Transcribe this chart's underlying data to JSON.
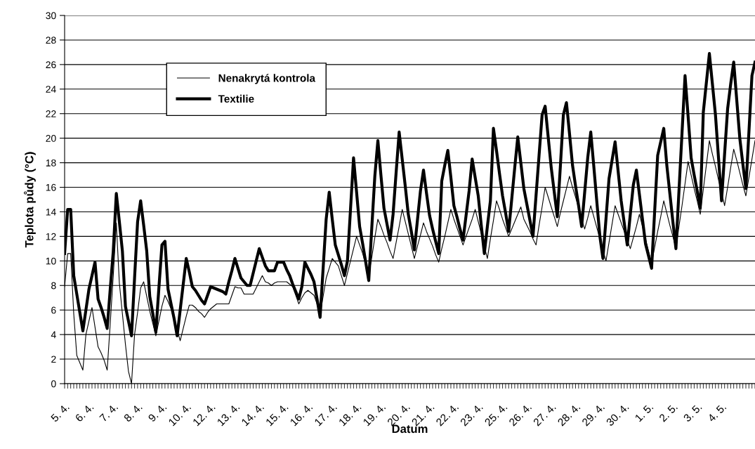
{
  "chart_data": {
    "type": "line",
    "xlabel": "Datum",
    "ylabel": "Teplota půdy (°C)",
    "ylim": [
      0,
      30
    ],
    "yticks": [
      0,
      2,
      4,
      6,
      8,
      10,
      12,
      14,
      16,
      18,
      20,
      22,
      24,
      26,
      28,
      30
    ],
    "grid": "y",
    "legend": "top left",
    "marker": "none",
    "line_style": "solid",
    "categories": [
      "5. 4.",
      null,
      null,
      null,
      null,
      null,
      null,
      null,
      "6. 4.",
      null,
      null,
      null,
      null,
      null,
      null,
      null,
      "7. 4.",
      null,
      null,
      null,
      null,
      null,
      null,
      null,
      "8. 4.",
      null,
      null,
      null,
      null,
      null,
      null,
      null,
      "9. 4.",
      null,
      null,
      null,
      null,
      null,
      null,
      null,
      "10. 4.",
      null,
      null,
      null,
      null,
      null,
      null,
      null,
      "12. 4.",
      null,
      null,
      null,
      null,
      null,
      null,
      null,
      "13. 4.",
      null,
      null,
      null,
      null,
      null,
      null,
      null,
      "14. 4.",
      null,
      null,
      null,
      null,
      null,
      null,
      null,
      "15. 4.",
      null,
      null,
      null,
      null,
      null,
      null,
      null,
      "16. 4.",
      null,
      null,
      null,
      null,
      null,
      null,
      null,
      "17. 4.",
      null,
      null,
      null,
      null,
      null,
      null,
      null,
      "18. 4.",
      null,
      null,
      null,
      null,
      null,
      null,
      null,
      "19. 4.",
      null,
      null,
      null,
      null,
      null,
      null,
      null,
      "20. 4.",
      null,
      null,
      null,
      null,
      null,
      null,
      null,
      "21. 4.",
      null,
      null,
      null,
      null,
      null,
      null,
      null,
      "22. 4.",
      null,
      null,
      null,
      null,
      null,
      null,
      null,
      "23. 4.",
      null,
      null,
      null,
      null,
      null,
      null,
      null,
      "25. 4.",
      null,
      null,
      null,
      null,
      null,
      null,
      null,
      "26. 4.",
      null,
      null,
      null,
      null,
      null,
      null,
      null,
      "27. 4.",
      null,
      null,
      null,
      null,
      null,
      null,
      null,
      "28. 4.",
      null,
      null,
      null,
      null,
      null,
      null,
      null,
      "29. 4.",
      null,
      null,
      null,
      null,
      null,
      null,
      null,
      "30. 4.",
      null,
      null,
      null,
      null,
      null,
      null,
      null,
      "1. 5.",
      null,
      null,
      null,
      null,
      null,
      null,
      null,
      "2. 5.",
      null,
      null,
      null,
      null,
      null,
      null,
      null,
      "3. 5.",
      null,
      null,
      null,
      null,
      null,
      null,
      null,
      "4. 5.",
      null,
      null,
      null,
      null,
      null,
      null,
      null,
      null,
      null,
      null,
      null
    ],
    "series": [
      {
        "name": "Nenakrytá kontrola",
        "color": "#000000",
        "values": [
          7.9,
          10.6,
          10.6,
          5.7,
          2.3,
          1.7,
          1.1,
          4,
          5.1,
          6.2,
          4.6,
          3,
          2.5,
          1.9,
          1.1,
          4.9,
          8.8,
          13.1,
          8.2,
          5.7,
          3.2,
          1,
          0,
          4,
          5.8,
          7.8,
          8.3,
          7.1,
          5.9,
          4.9,
          3.9,
          5.1,
          6.3,
          7.2,
          6.7,
          6.1,
          5.2,
          4.4,
          3.5,
          4.5,
          5.5,
          6.4,
          6.4,
          6.2,
          5.9,
          5.7,
          5.4,
          5.8,
          6.1,
          6.3,
          6.5,
          6.5,
          6.5,
          6.5,
          6.5,
          7.2,
          7.9,
          7.8,
          7.8,
          7.3,
          7.3,
          7.3,
          7.3,
          7.8,
          8.3,
          8.8,
          8.3,
          8.2,
          8,
          8.2,
          8.3,
          8.3,
          8.3,
          8.3,
          8.1,
          7.9,
          7.2,
          6.5,
          7,
          7.4,
          7.6,
          7.4,
          7.2,
          6.5,
          5.7,
          7.1,
          8.6,
          9.4,
          10.2,
          9.9,
          9.6,
          8.8,
          8,
          9,
          10,
          11,
          12,
          11.3,
          10.6,
          9.7,
          8.8,
          10.3,
          11.9,
          13.4,
          12.8,
          12.1,
          11.5,
          10.8,
          10.2,
          11.5,
          12.8,
          14.2,
          13.2,
          12.2,
          11.2,
          10.2,
          11.2,
          12.1,
          13.1,
          12.4,
          11.8,
          11.2,
          10.5,
          9.9,
          11,
          12,
          13.1,
          14.2,
          13.4,
          12.7,
          12,
          11.3,
          12,
          12.7,
          13.4,
          14.2,
          13.2,
          12.2,
          11.2,
          10.2,
          11.8,
          13.3,
          14.9,
          14.2,
          13.4,
          12.7,
          12,
          12.6,
          13.2,
          13.8,
          14.4,
          13.4,
          12.9,
          12.4,
          11.8,
          11.3,
          12.9,
          14.4,
          16,
          15.2,
          14.4,
          13.6,
          12.8,
          13.9,
          14.9,
          15.9,
          16.9,
          16,
          15.2,
          14.3,
          13.4,
          12.6,
          13.5,
          14.5,
          13.6,
          12.7,
          11.8,
          10.9,
          10,
          11.5,
          13,
          14.5,
          13.8,
          13.1,
          12.4,
          11.7,
          11,
          11.9,
          12.8,
          13.8,
          12.8,
          11.8,
          10.8,
          9.8,
          11.1,
          12.4,
          13.6,
          14.9,
          13.9,
          12.9,
          12,
          11,
          12.8,
          14.5,
          16.3,
          18.1,
          17,
          15.9,
          14.9,
          13.8,
          15.8,
          17.8,
          19.8,
          18.7,
          17.7,
          16.6,
          15.6,
          14.5,
          16,
          17.6,
          19.1,
          18.2,
          17.2,
          16.2,
          15.3,
          16.8,
          18.3,
          19.8
        ]
      },
      {
        "name": "Textilie",
        "color": "#000000",
        "values": [
          10.6,
          14.2,
          14.2,
          8.8,
          7.3,
          5.8,
          4.3,
          6,
          7.7,
          8.8,
          9.9,
          6.9,
          6.2,
          5.4,
          4.5,
          7.7,
          10.8,
          15.5,
          13.2,
          10.8,
          6.3,
          5.1,
          3.9,
          8.6,
          13.2,
          14.9,
          12.9,
          10.8,
          7.1,
          5.7,
          4.2,
          7.8,
          11.3,
          11.6,
          7.7,
          6.5,
          5.3,
          3.9,
          6,
          8.1,
          10.2,
          9.1,
          7.9,
          7.6,
          7.2,
          6.8,
          6.5,
          7.2,
          7.9,
          7.8,
          7.7,
          7.6,
          7.5,
          7.3,
          8.3,
          9.2,
          10.2,
          9.4,
          8.6,
          8.3,
          8,
          8,
          9,
          10,
          11,
          10.3,
          9.6,
          9.2,
          9.2,
          9.2,
          9.9,
          9.9,
          9.9,
          9.3,
          8.8,
          8.1,
          7.5,
          6.9,
          7.9,
          9.9,
          9.4,
          8.9,
          8.3,
          6.9,
          5.4,
          9.4,
          13.4,
          15.6,
          13.4,
          11.3,
          10.5,
          9.7,
          8.8,
          10,
          14.2,
          18.4,
          15.6,
          12.8,
          11.4,
          9.9,
          8.4,
          12.7,
          16.9,
          19.8,
          17,
          14.3,
          13,
          11.7,
          13.8,
          17.2,
          20.5,
          18.3,
          16.1,
          13.8,
          12.4,
          10.9,
          13.3,
          15.7,
          17.4,
          15.5,
          13.7,
          12.6,
          11.6,
          10.6,
          16.5,
          17.8,
          19,
          16.8,
          14.5,
          13.6,
          12.6,
          11.7,
          13.7,
          15.7,
          18.3,
          16.8,
          15.3,
          12.9,
          10.6,
          12.8,
          14.9,
          20.8,
          19,
          17.1,
          15.3,
          13.9,
          12.4,
          15,
          17.6,
          20.1,
          18,
          15.9,
          14.6,
          13.3,
          12,
          15.3,
          18.6,
          21.9,
          22.6,
          20.1,
          17.6,
          15.6,
          13.6,
          17.7,
          21.9,
          22.9,
          20.4,
          17.8,
          16.1,
          14.5,
          12.8,
          15.6,
          18.4,
          20.5,
          17.7,
          14.8,
          12,
          10.2,
          13.4,
          16.7,
          18.2,
          19.7,
          17.3,
          14.9,
          13.1,
          11.3,
          13.8,
          16.2,
          17.4,
          15.4,
          13.4,
          11.4,
          10.4,
          9.4,
          14,
          18.6,
          19.7,
          20.8,
          17.8,
          15.5,
          13.2,
          11,
          15.7,
          20.4,
          25.1,
          21.8,
          18.4,
          17,
          15.7,
          14.3,
          22.1,
          24.5,
          26.9,
          24.4,
          21.9,
          18.4,
          14.9,
          18.7,
          22.4,
          24.4,
          26.2,
          23.1,
          20,
          17.9,
          15.9,
          20.5,
          25.1,
          26.2
        ]
      }
    ]
  }
}
